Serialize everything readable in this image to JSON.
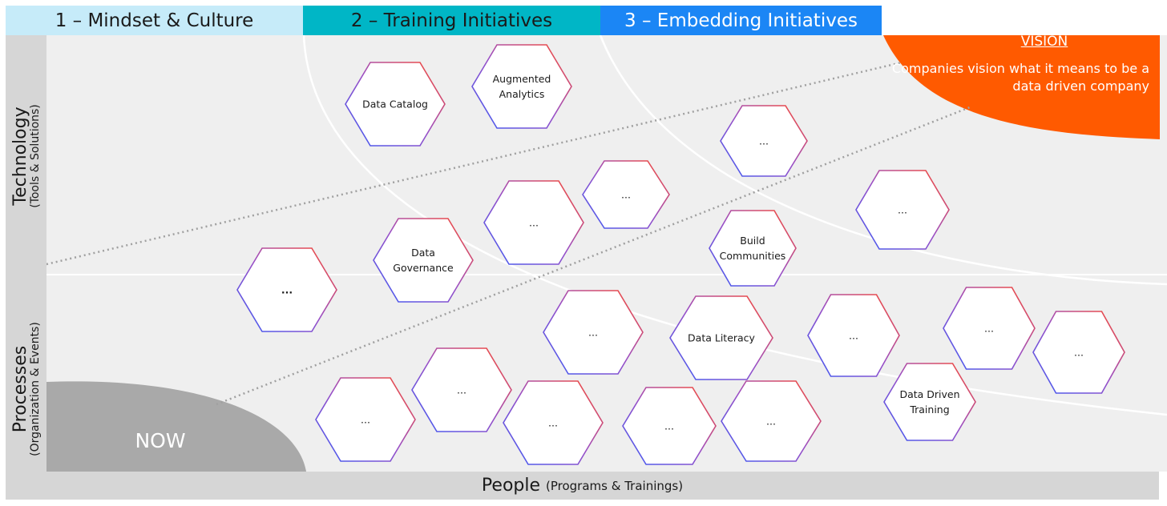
{
  "phases": [
    {
      "label": "1 – Mindset & Culture",
      "color": "#c6ebf9"
    },
    {
      "label": "2 – Training Initiatives",
      "color": "#00b6c6"
    },
    {
      "label": "3 – Embedding Initiatives",
      "color": "#1b86f5"
    }
  ],
  "axes": {
    "technology": {
      "title": "Technology",
      "subtitle": "(Tools & Solutions)"
    },
    "processes": {
      "title": "Processes",
      "subtitle": "(Organization & Events)"
    },
    "people": {
      "title": "People",
      "subtitle": "(Programs & Trainings)"
    }
  },
  "vision": {
    "title": "VISION",
    "text": "Companies vision what it means to be a data driven company",
    "color": "#ff5a00"
  },
  "now": {
    "label": "NOW",
    "color": "#a9a9a9"
  },
  "hexagons": [
    {
      "label": "Data Catalog"
    },
    {
      "label": "Augmented Analytics"
    },
    {
      "label": "..."
    },
    {
      "label": "..."
    },
    {
      "label": "..."
    },
    {
      "label": "..."
    },
    {
      "label": "Data Governance"
    },
    {
      "label": "Build Communities"
    },
    {
      "label": "..."
    },
    {
      "label": "..."
    },
    {
      "label": "Data Literacy"
    },
    {
      "label": "..."
    },
    {
      "label": "..."
    },
    {
      "label": "..."
    },
    {
      "label": "..."
    },
    {
      "label": "..."
    },
    {
      "label": "..."
    },
    {
      "label": "..."
    },
    {
      "label": "..."
    },
    {
      "label": "Data Driven Training"
    }
  ]
}
